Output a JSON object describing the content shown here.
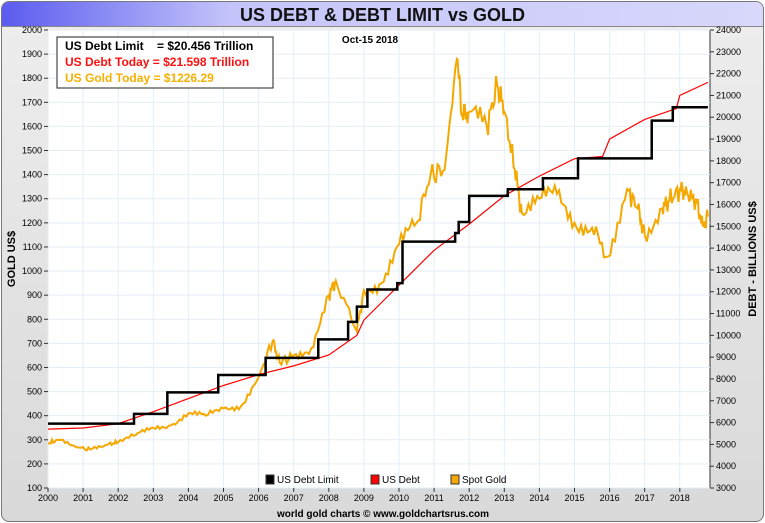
{
  "title": "US DEBT & DEBT LIMIT vs GOLD",
  "date": "Oct-15  2018",
  "info_box": {
    "limit": "US Debt Limit    = $20.456 Trillion",
    "debt": "US Debt Today = $21.598 Trillion",
    "gold": "US Gold Today = $1226.29"
  },
  "footer": "world gold charts © www.goldchartsrus.com",
  "colors": {
    "limit": "#000000",
    "debt": "#ff0000",
    "gold": "#f5a800"
  },
  "chart_data": {
    "type": "line",
    "title": "US DEBT & DEBT LIMIT vs GOLD",
    "ylabel": "GOLD US$",
    "y2label": "DEBT - BILLIONS US$",
    "xlim": [
      2000,
      2018.8
    ],
    "ylim": [
      100,
      2000
    ],
    "y2lim": [
      3000,
      24000
    ],
    "x_ticks": [
      2000,
      2001,
      2002,
      2003,
      2004,
      2005,
      2006,
      2007,
      2008,
      2009,
      2010,
      2011,
      2012,
      2013,
      2014,
      2015,
      2016,
      2017,
      2018
    ],
    "y_ticks": [
      100,
      200,
      300,
      400,
      500,
      600,
      700,
      800,
      900,
      1000,
      1100,
      1200,
      1300,
      1400,
      1500,
      1600,
      1700,
      1800,
      1900,
      2000
    ],
    "y2_ticks": [
      3000,
      4000,
      5000,
      6000,
      7000,
      8000,
      9000,
      10000,
      11000,
      12000,
      13000,
      14000,
      15000,
      16000,
      17000,
      18000,
      19000,
      20000,
      21000,
      22000,
      23000,
      24000
    ],
    "legend": [
      "US Debt Limit",
      "US Debt",
      "Spot Gold"
    ],
    "legend_position": "bottom-center",
    "series": [
      {
        "name": "US Debt Limit",
        "axis": "right",
        "step": true,
        "x": [
          2000,
          2002.45,
          2003.4,
          2004.85,
          2006.2,
          2007.7,
          2008.55,
          2008.8,
          2009.1,
          2009.95,
          2010.1,
          2011.6,
          2011.7,
          2012.0,
          2013.1,
          2014.1,
          2015.1,
          2017.2,
          2017.8,
          2018.8
        ],
        "y": [
          5950,
          6400,
          7384,
          8184,
          8965,
          9815,
          10615,
          11315,
          12104,
          12394,
          14294,
          14694,
          15194,
          16394,
          16700,
          17200,
          18113,
          19846,
          20456,
          20456
        ]
      },
      {
        "name": "US Debt",
        "axis": "right",
        "x": [
          2000,
          2001,
          2002,
          2003,
          2004,
          2005,
          2006,
          2007,
          2008,
          2008.8,
          2009,
          2010,
          2011,
          2012,
          2013,
          2014,
          2015,
          2015.8,
          2016,
          2017,
          2017.9,
          2018,
          2018.8
        ],
        "y": [
          5700,
          5750,
          5950,
          6500,
          7100,
          7700,
          8200,
          8600,
          9100,
          10000,
          10700,
          12300,
          13900,
          15100,
          16400,
          17300,
          18100,
          18200,
          19000,
          19900,
          20400,
          21000,
          21598
        ]
      },
      {
        "name": "Spot Gold",
        "axis": "left",
        "x": [
          2000,
          2000.3,
          2000.8,
          2001.2,
          2001.7,
          2002,
          2002.5,
          2003,
          2003.5,
          2004,
          2004.5,
          2005,
          2005.5,
          2006,
          2006.4,
          2006.6,
          2007,
          2007.5,
          2008,
          2008.2,
          2008.8,
          2009,
          2009.5,
          2010,
          2010.5,
          2010.9,
          2011.3,
          2011.65,
          2011.8,
          2012,
          2012.5,
          2012.8,
          2013,
          2013.3,
          2013.5,
          2014,
          2014.5,
          2015,
          2015.5,
          2015.95,
          2016.5,
          2016.8,
          2017,
          2017.5,
          2017.7,
          2018,
          2018.2,
          2018.5,
          2018.65,
          2018.8
        ],
        "y": [
          285,
          300,
          270,
          260,
          280,
          290,
          320,
          350,
          360,
          410,
          400,
          430,
          440,
          560,
          710,
          620,
          650,
          680,
          900,
          960,
          750,
          920,
          950,
          1110,
          1200,
          1400,
          1420,
          1880,
          1650,
          1660,
          1600,
          1770,
          1660,
          1420,
          1240,
          1300,
          1320,
          1200,
          1180,
          1060,
          1340,
          1260,
          1150,
          1260,
          1290,
          1340,
          1330,
          1280,
          1190,
          1226
        ]
      }
    ]
  }
}
